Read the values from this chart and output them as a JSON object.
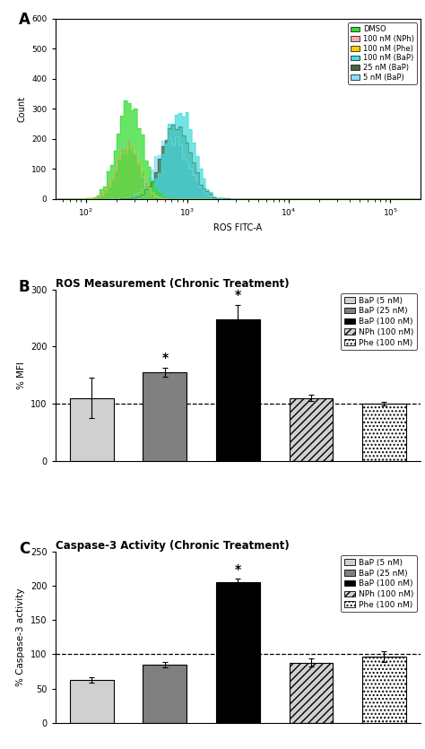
{
  "panel_A": {
    "xlabel": "ROS FITC-A",
    "ylabel": "Count",
    "ylim": [
      0,
      600
    ],
    "yticks": [
      0,
      100,
      200,
      300,
      400,
      500,
      600
    ],
    "xlim_log": [
      1.7,
      5.3
    ],
    "legend_labels": [
      "DMSO",
      "100 nM (NPh)",
      "100 nM (Phe)",
      "100 nM (BaP)",
      "25 nM (BaP)",
      "5 nM (BaP)"
    ],
    "legend_colors": [
      "#33dd33",
      "#ffaaaa",
      "#ffcc00",
      "#44dddd",
      "#446644",
      "#88ddff"
    ],
    "peaks_mu": [
      5.6,
      5.55,
      5.58,
      6.75,
      6.65,
      6.55
    ],
    "peaks_sigma": [
      0.28,
      0.26,
      0.27,
      0.3,
      0.33,
      0.36
    ],
    "peaks_n": [
      3000,
      2800,
      2800,
      3000,
      2900,
      2800
    ],
    "peaks_scale": [
      1.0,
      0.55,
      0.55,
      1.0,
      0.9,
      0.85
    ]
  },
  "panel_B": {
    "title": "ROS Measurement (Chronic Treatment)",
    "ylabel": "% MFI",
    "ylim": [
      0,
      300
    ],
    "yticks": [
      0,
      100,
      200,
      300
    ],
    "dashed_line_y": 100,
    "values": [
      110,
      155,
      248,
      110,
      100
    ],
    "errors": [
      35,
      8,
      25,
      5,
      3
    ],
    "bar_colors": [
      "#d0d0d0",
      "#808080",
      "#000000",
      "#d0d0d0",
      "#ffffff"
    ],
    "bar_hatches": [
      null,
      null,
      null,
      "////",
      "...."
    ],
    "star_bars": [
      1,
      2
    ],
    "legend_labels": [
      "BaP (5 nM)",
      "BaP (25 nM)",
      "BaP (100 nM)",
      "NPh (100 nM)",
      "Phe (100 nM)"
    ],
    "legend_colors": [
      "#d0d0d0",
      "#808080",
      "#000000",
      "#d0d0d0",
      "#ffffff"
    ],
    "legend_hatches": [
      null,
      null,
      null,
      "////",
      "...."
    ]
  },
  "panel_C": {
    "title": "Caspase-3 Activity (Chronic Treatment)",
    "ylabel": "% Caspase-3 activity",
    "ylim": [
      0,
      250
    ],
    "yticks": [
      0,
      50,
      100,
      150,
      200,
      250
    ],
    "dashed_line_y": 100,
    "values": [
      63,
      85,
      205,
      88,
      97
    ],
    "errors": [
      4,
      4,
      5,
      6,
      8
    ],
    "bar_colors": [
      "#d0d0d0",
      "#808080",
      "#000000",
      "#d0d0d0",
      "#ffffff"
    ],
    "bar_hatches": [
      null,
      null,
      null,
      "////",
      "...."
    ],
    "star_bars": [
      2
    ],
    "legend_labels": [
      "BaP (5 nM)",
      "BaP (25 nM)",
      "BaP (100 nM)",
      "NPh (100 nM)",
      "Phe (100 nM)"
    ],
    "legend_colors": [
      "#d0d0d0",
      "#808080",
      "#000000",
      "#d0d0d0",
      "#ffffff"
    ],
    "legend_hatches": [
      null,
      null,
      null,
      "////",
      "...."
    ]
  }
}
